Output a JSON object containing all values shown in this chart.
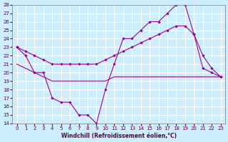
{
  "xlabel": "Windchill (Refroidissement éolien,°C)",
  "bg_color": "#cceeff",
  "line_color": "#990099",
  "grid_color": "#ffffff",
  "xlim": [
    -0.5,
    23.5
  ],
  "ylim": [
    14,
    28
  ],
  "xticks": [
    0,
    1,
    2,
    3,
    4,
    5,
    6,
    7,
    8,
    9,
    10,
    11,
    12,
    13,
    14,
    15,
    16,
    17,
    18,
    19,
    20,
    21,
    22,
    23
  ],
  "yticks": [
    14,
    15,
    16,
    17,
    18,
    19,
    20,
    21,
    22,
    23,
    24,
    25,
    26,
    27,
    28
  ],
  "line1_x": [
    0,
    1,
    2,
    3,
    4,
    5,
    6,
    7,
    8,
    9,
    10,
    11,
    12,
    13,
    14,
    15,
    16,
    17,
    18,
    19,
    20,
    21,
    22,
    23
  ],
  "line1_y": [
    23,
    22,
    20,
    20,
    17,
    16.5,
    16.5,
    15,
    15,
    14,
    18,
    21,
    24,
    24,
    25,
    26,
    26,
    27,
    28,
    28,
    24.5,
    20.5,
    20,
    19.5
  ],
  "line2_x": [
    0,
    1,
    2,
    3,
    4,
    5,
    6,
    7,
    8,
    9,
    10,
    11,
    12,
    13,
    14,
    15,
    16,
    17,
    18,
    19,
    20,
    21,
    22,
    23
  ],
  "line2_y": [
    23,
    22.5,
    22,
    21.5,
    21,
    21,
    21,
    21,
    21,
    21,
    21.5,
    22,
    22.5,
    23,
    23.5,
    24,
    24.5,
    25,
    25.5,
    25.5,
    24.5,
    22,
    20.5,
    19.5
  ],
  "line3_x": [
    0,
    1,
    2,
    3,
    4,
    5,
    6,
    7,
    8,
    9,
    10,
    11,
    12,
    13,
    14,
    15,
    16,
    17,
    18,
    19,
    20,
    21,
    22,
    23
  ],
  "line3_y": [
    21,
    20.5,
    20,
    19.5,
    19,
    19,
    19,
    19,
    19,
    19,
    19,
    19.5,
    19.5,
    19.5,
    19.5,
    19.5,
    19.5,
    19.5,
    19.5,
    19.5,
    19.5,
    19.5,
    19.5,
    19.5
  ]
}
